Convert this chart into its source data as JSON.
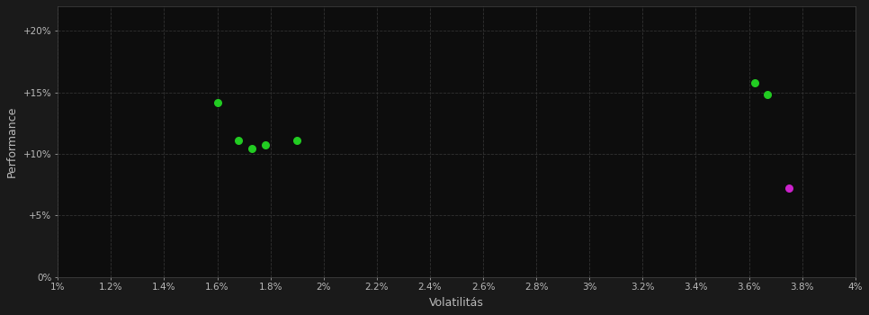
{
  "background_color": "#1a1a1a",
  "plot_bg_color": "#0d0d0d",
  "grid_color": "#3a3a3a",
  "text_color": "#bbbbbb",
  "xlabel": "Volatilitás",
  "ylabel": "Performance",
  "xlim": [
    0.01,
    0.04
  ],
  "ylim": [
    0.0,
    0.22
  ],
  "xticks": [
    0.01,
    0.012,
    0.014,
    0.016,
    0.018,
    0.02,
    0.022,
    0.024,
    0.026,
    0.028,
    0.03,
    0.032,
    0.034,
    0.036,
    0.038,
    0.04
  ],
  "xtick_labels": [
    "1%",
    "1.2%",
    "1.4%",
    "1.6%",
    "1.8%",
    "2%",
    "2.2%",
    "2.4%",
    "2.6%",
    "2.8%",
    "3%",
    "3.2%",
    "3.4%",
    "3.6%",
    "3.8%",
    "4%"
  ],
  "yticks": [
    0.0,
    0.05,
    0.1,
    0.15,
    0.2
  ],
  "ytick_labels": [
    "0%",
    "+5%",
    "+10%",
    "+15%",
    "+20%"
  ],
  "scatter_green": [
    [
      0.016,
      0.142
    ],
    [
      0.0168,
      0.111
    ],
    [
      0.0173,
      0.104
    ],
    [
      0.0178,
      0.107
    ],
    [
      0.019,
      0.111
    ],
    [
      0.0362,
      0.158
    ],
    [
      0.0367,
      0.148
    ]
  ],
  "scatter_magenta": [
    [
      0.0375,
      0.072
    ]
  ],
  "green_color": "#22cc22",
  "magenta_color": "#cc22cc",
  "marker_size": 30
}
